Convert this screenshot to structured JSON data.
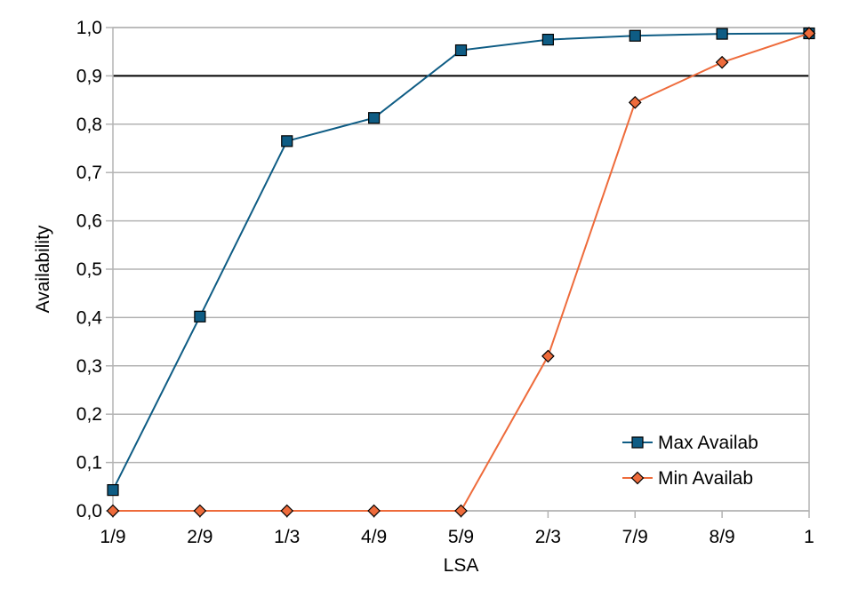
{
  "chart_data": {
    "type": "line",
    "xlabel": "LSA",
    "ylabel": "Availability",
    "categories": [
      "1/9",
      "2/9",
      "1/3",
      "4/9",
      "5/9",
      "2/3",
      "7/9",
      "8/9",
      "1"
    ],
    "ylim": [
      0,
      1
    ],
    "yticks": [
      "0,0",
      "0,1",
      "0,2",
      "0,3",
      "0,4",
      "0,5",
      "0,6",
      "0,7",
      "0,8",
      "0,9",
      "1,0"
    ],
    "grid": true,
    "legend_position": "bottom-right",
    "reference_line": {
      "y": 0.9,
      "color": "#000000"
    },
    "series": [
      {
        "name": "Max Availab",
        "marker": "square",
        "color": "#0e5c84",
        "values": [
          0.043,
          0.402,
          0.765,
          0.813,
          0.953,
          0.975,
          0.983,
          0.987,
          0.988
        ]
      },
      {
        "name": "Min Availab",
        "marker": "diamond",
        "color": "#ee6b3b",
        "values": [
          0.0,
          0.0,
          0.0,
          0.0,
          0.0,
          0.32,
          0.845,
          0.928,
          0.988
        ]
      }
    ]
  }
}
